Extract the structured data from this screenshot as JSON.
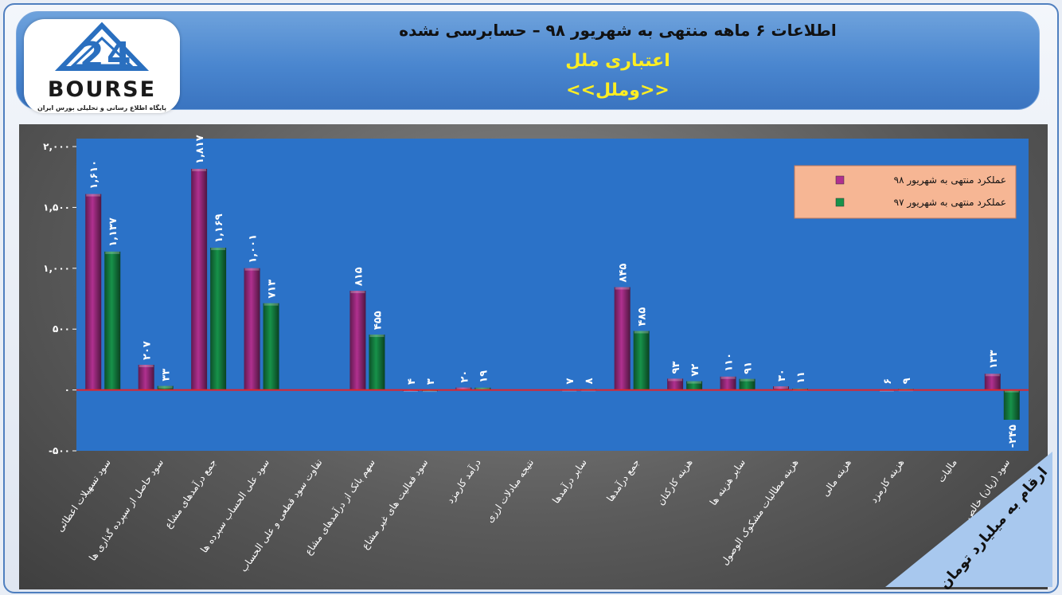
{
  "header": {
    "title_line1": "اطلاعات ۶ ماهه منتهی به شهریور ۹۸ – حسابرسی نشده",
    "company_name": "اعتباری ملل",
    "ticker": "<<وملل>>"
  },
  "logo": {
    "word": "BOURSE",
    "tagline": "پایگاه اطلاع رسانی و تحلیلی بورس ایران"
  },
  "unit_note": "ارقام به میلیارد تومان",
  "colors": {
    "series_98": "#b0308f",
    "series_97": "#17924a",
    "plot_area": "#2b72c8",
    "zero_line": "#e0242c",
    "legend_bg": "#f6b694"
  },
  "chart_data": {
    "type": "bar",
    "categories": [
      "سود تسهیلات اعطائی",
      "سود حاصل از سپرده گذاری ها",
      "جمع درآمدهای مشاع",
      "سود علی الحساب سپرده ها",
      "تفاوت سود قطعی و علی الحساب",
      "سهم بانک از درآمدهای مشاع",
      "سود فعالیت های غیر مشاع",
      "درآمد کارمزد",
      "نتیجه مبادلات ارزی",
      "سایر درآمدها",
      "جمع درآمدها",
      "هزینه کارکنان",
      "سایر هزینه ها",
      "هزینه مطالبات مشکوک الوصول",
      "هزینه مالی",
      "هزینه کارمزد",
      "مالیات",
      "سود (زیان) خالص"
    ],
    "series": [
      {
        "name": "عملکرد منتهی به شهریور ۹۸",
        "values": [
          1610,
          207,
          1817,
          1001,
          0,
          815,
          4,
          20,
          0,
          7,
          845,
          93,
          110,
          30,
          0,
          6,
          0,
          133
        ],
        "labels": [
          "۱,۶۱۰",
          "۲۰۷",
          "۱,۸۱۷",
          "۱,۰۰۱",
          "",
          "۸۱۵",
          "۴",
          "۲۰",
          "",
          "۷",
          "۸۴۵",
          "۹۳",
          "۱۱۰",
          "۳۰",
          "",
          "۶",
          "",
          "۱۳۳"
        ]
      },
      {
        "name": "عملکرد منتهی به شهریور ۹۷",
        "values": [
          1137,
          33,
          1169,
          713,
          0,
          455,
          3,
          19,
          0,
          8,
          485,
          72,
          91,
          11,
          0,
          9,
          0,
          -245
        ],
        "labels": [
          "۱,۱۳۷",
          "۳۳",
          "۱,۱۶۹",
          "۷۱۳",
          "",
          "۴۵۵",
          "۳",
          "۱۹",
          "",
          "۸",
          "۴۸۵",
          "۷۲",
          "۹۱",
          "۱۱",
          "",
          "۹",
          "",
          "-۲۴۵"
        ]
      }
    ],
    "y_ticks": [
      -500,
      0,
      500,
      1000,
      1500,
      2000
    ],
    "y_tick_labels": [
      "-۵۰۰",
      "۰",
      "۵۰۰",
      "۱,۰۰۰",
      "۱,۵۰۰",
      "۲,۰۰۰"
    ],
    "ylim": [
      -500,
      2000
    ],
    "grid": false,
    "legend_position": "top-right"
  }
}
